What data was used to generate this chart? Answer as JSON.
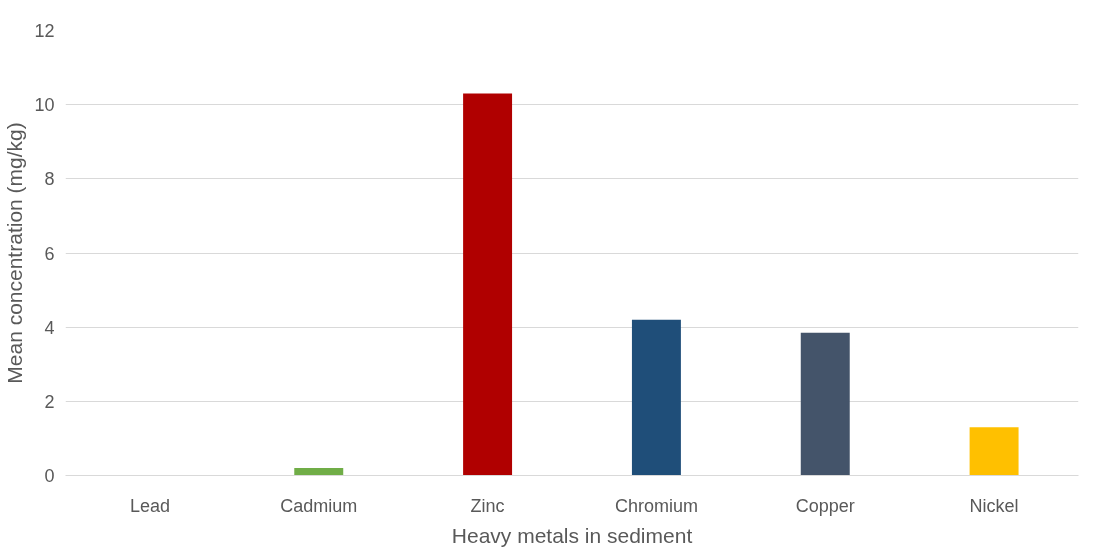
{
  "chart_data": {
    "type": "bar",
    "xlabel": "Heavy metals in sediment",
    "ylabel": "Mean concentration (mg/kg)",
    "categories": [
      "Lead",
      "Cadmium",
      "Zinc",
      "Chromium",
      "Copper",
      "Nickel"
    ],
    "values": [
      0,
      0.2,
      10.3,
      4.2,
      3.85,
      1.3
    ],
    "colors": [
      "#4472c4",
      "#70ad47",
      "#b00000",
      "#1f4e79",
      "#44546a",
      "#ffc000"
    ],
    "ylim": [
      0,
      12
    ],
    "yticks": [
      0,
      2,
      4,
      6,
      8,
      10,
      12
    ],
    "grid": "y"
  }
}
